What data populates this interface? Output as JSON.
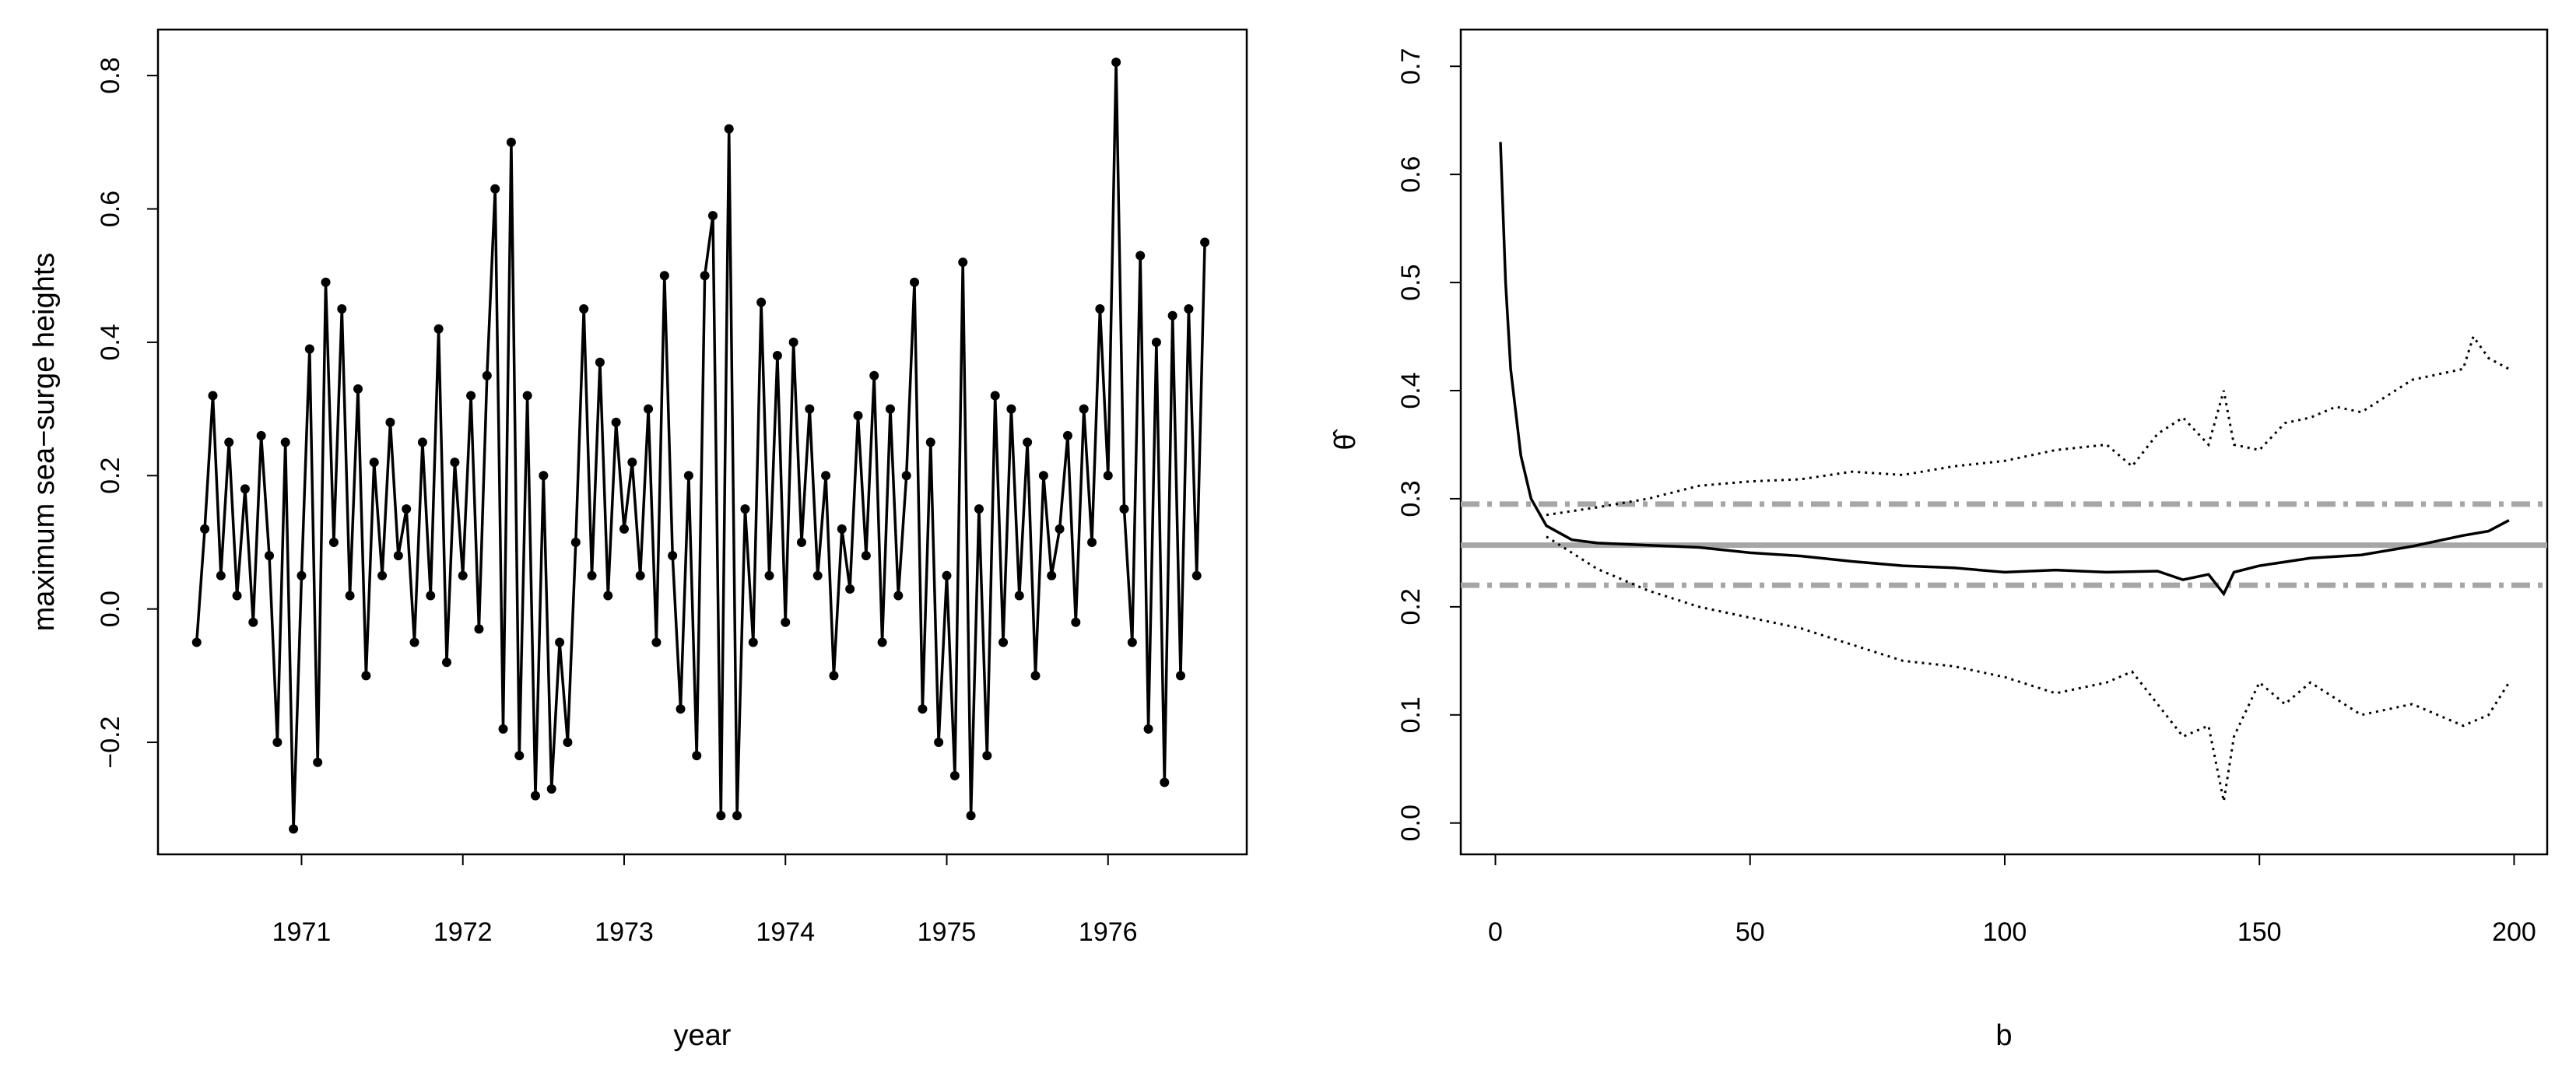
{
  "chart_data": [
    {
      "type": "line",
      "xlabel": "year",
      "ylabel": "maximum sea−surge heights",
      "xlim": [
        1970.11,
        1976.86
      ],
      "ylim": [
        -0.368,
        0.869
      ],
      "xticks": [
        1971,
        1972,
        1973,
        1974,
        1975,
        1976
      ],
      "yticks": [
        {
          "value": -0.2,
          "label": "−0.2"
        },
        {
          "value": 0,
          "label": "0.0"
        },
        0.2,
        0.4,
        0.6,
        0.8
      ],
      "markers": true,
      "series": [
        {
          "color": "#000000",
          "linestyle": "solid",
          "x": [
            1970.35,
            1970.4,
            1970.45,
            1970.5,
            1970.55,
            1970.6,
            1970.65,
            1970.7,
            1970.75,
            1970.8,
            1970.85,
            1970.9,
            1970.95,
            1971.0,
            1971.05,
            1971.1,
            1971.15,
            1971.2,
            1971.25,
            1971.3,
            1971.35,
            1971.4,
            1971.45,
            1971.5,
            1971.55,
            1971.6,
            1971.65,
            1971.7,
            1971.75,
            1971.8,
            1971.85,
            1971.9,
            1971.95,
            1972.0,
            1972.05,
            1972.1,
            1972.15,
            1972.2,
            1972.25,
            1972.3,
            1972.35,
            1972.4,
            1972.45,
            1972.5,
            1972.55,
            1972.6,
            1972.65,
            1972.7,
            1972.75,
            1972.8,
            1972.85,
            1972.9,
            1972.95,
            1973.0,
            1973.05,
            1973.1,
            1973.15,
            1973.2,
            1973.25,
            1973.3,
            1973.35,
            1973.4,
            1973.45,
            1973.5,
            1973.55,
            1973.6,
            1973.65,
            1973.7,
            1973.75,
            1973.8,
            1973.85,
            1973.9,
            1973.95,
            1974.0,
            1974.05,
            1974.1,
            1974.15,
            1974.2,
            1974.25,
            1974.3,
            1974.35,
            1974.4,
            1974.45,
            1974.5,
            1974.55,
            1974.6,
            1974.65,
            1974.7,
            1974.75,
            1974.8,
            1974.85,
            1974.9,
            1974.95,
            1975.0,
            1975.05,
            1975.1,
            1975.15,
            1975.2,
            1975.25,
            1975.3,
            1975.35,
            1975.4,
            1975.45,
            1975.5,
            1975.55,
            1975.6,
            1975.65,
            1975.7,
            1975.75,
            1975.8,
            1975.85,
            1975.9,
            1975.95,
            1976.0,
            1976.05,
            1976.1,
            1976.15,
            1976.2,
            1976.25,
            1976.3,
            1976.35,
            1976.4,
            1976.45,
            1976.5,
            1976.55,
            1976.6
          ],
          "values": [
            -0.05,
            0.12,
            0.32,
            0.05,
            0.25,
            0.02,
            0.18,
            -0.02,
            0.26,
            0.08,
            -0.2,
            0.25,
            -0.33,
            0.05,
            0.39,
            -0.23,
            0.49,
            0.1,
            0.45,
            0.02,
            0.33,
            -0.1,
            0.22,
            0.05,
            0.28,
            0.08,
            0.15,
            -0.05,
            0.25,
            0.02,
            0.42,
            -0.08,
            0.22,
            0.05,
            0.32,
            -0.03,
            0.35,
            0.63,
            -0.18,
            0.7,
            -0.22,
            0.32,
            -0.28,
            0.2,
            -0.27,
            -0.05,
            -0.2,
            0.1,
            0.45,
            0.05,
            0.37,
            0.02,
            0.28,
            0.12,
            0.22,
            0.05,
            0.3,
            -0.05,
            0.5,
            0.08,
            -0.15,
            0.2,
            -0.22,
            0.5,
            0.59,
            -0.31,
            0.72,
            -0.31,
            0.15,
            -0.05,
            0.46,
            0.05,
            0.38,
            -0.02,
            0.4,
            0.1,
            0.3,
            0.05,
            0.2,
            -0.1,
            0.12,
            0.03,
            0.29,
            0.08,
            0.35,
            -0.05,
            0.3,
            0.02,
            0.2,
            0.49,
            -0.15,
            0.25,
            -0.2,
            0.05,
            -0.25,
            0.52,
            -0.31,
            0.15,
            -0.22,
            0.32,
            -0.05,
            0.3,
            0.02,
            0.25,
            -0.1,
            0.2,
            0.05,
            0.12,
            0.26,
            -0.02,
            0.3,
            0.1,
            0.45,
            0.2,
            0.82,
            0.15,
            -0.05,
            0.53,
            -0.18,
            0.4,
            -0.26,
            0.44,
            -0.1,
            0.45,
            0.05,
            0.55
          ]
        }
      ]
    },
    {
      "type": "line",
      "xlabel": "b",
      "ylabel": "θ̂",
      "xlim": [
        -6.8,
        206.5
      ],
      "ylim": [
        -0.029,
        0.734
      ],
      "xticks": [
        0,
        50,
        100,
        150,
        200
      ],
      "yticks": [
        {
          "value": 0,
          "label": "0.0"
        },
        0.1,
        0.2,
        0.3,
        0.4,
        0.5,
        0.6,
        0.7
      ],
      "markers": false,
      "reference_lines": [
        {
          "value": 0.257,
          "color": "#a6a6a6",
          "linestyle": "solid"
        },
        {
          "value": 0.295,
          "color": "#a6a6a6",
          "linestyle": "dashdot"
        },
        {
          "value": 0.22,
          "color": "#a6a6a6",
          "linestyle": "dashdot"
        }
      ],
      "series": [
        {
          "color": "#000000",
          "linestyle": "solid",
          "x": [
            1,
            2,
            3,
            5,
            7,
            10,
            15,
            20,
            30,
            40,
            50,
            60,
            70,
            80,
            90,
            100,
            110,
            120,
            130,
            135,
            140,
            143,
            145,
            150,
            160,
            170,
            180,
            190,
            195,
            199
          ],
          "values": [
            0.63,
            0.5,
            0.42,
            0.34,
            0.3,
            0.275,
            0.262,
            0.259,
            0.257,
            0.255,
            0.25,
            0.247,
            0.242,
            0.238,
            0.236,
            0.232,
            0.234,
            0.232,
            0.233,
            0.225,
            0.23,
            0.212,
            0.232,
            0.238,
            0.245,
            0.248,
            0.256,
            0.266,
            0.27,
            0.28
          ]
        },
        {
          "color": "#000000",
          "linestyle": "dotted",
          "x": [
            10,
            20,
            30,
            40,
            50,
            60,
            70,
            80,
            90,
            100,
            110,
            120,
            125,
            130,
            135,
            140,
            143,
            145,
            150,
            155,
            160,
            165,
            170,
            180,
            190,
            192,
            195,
            199
          ],
          "values": [
            0.285,
            0.292,
            0.3,
            0.312,
            0.316,
            0.318,
            0.325,
            0.322,
            0.33,
            0.335,
            0.345,
            0.35,
            0.33,
            0.36,
            0.375,
            0.35,
            0.4,
            0.35,
            0.345,
            0.37,
            0.375,
            0.385,
            0.38,
            0.41,
            0.42,
            0.45,
            0.43,
            0.42
          ]
        },
        {
          "color": "#000000",
          "linestyle": "dotted",
          "x": [
            10,
            20,
            30,
            40,
            50,
            60,
            70,
            80,
            90,
            100,
            110,
            120,
            125,
            130,
            135,
            140,
            143,
            145,
            150,
            155,
            160,
            170,
            180,
            190,
            195,
            199
          ],
          "values": [
            0.265,
            0.235,
            0.215,
            0.2,
            0.19,
            0.18,
            0.165,
            0.15,
            0.145,
            0.135,
            0.12,
            0.13,
            0.14,
            0.11,
            0.08,
            0.09,
            0.02,
            0.08,
            0.13,
            0.11,
            0.13,
            0.1,
            0.11,
            0.09,
            0.1,
            0.13
          ]
        }
      ]
    }
  ]
}
